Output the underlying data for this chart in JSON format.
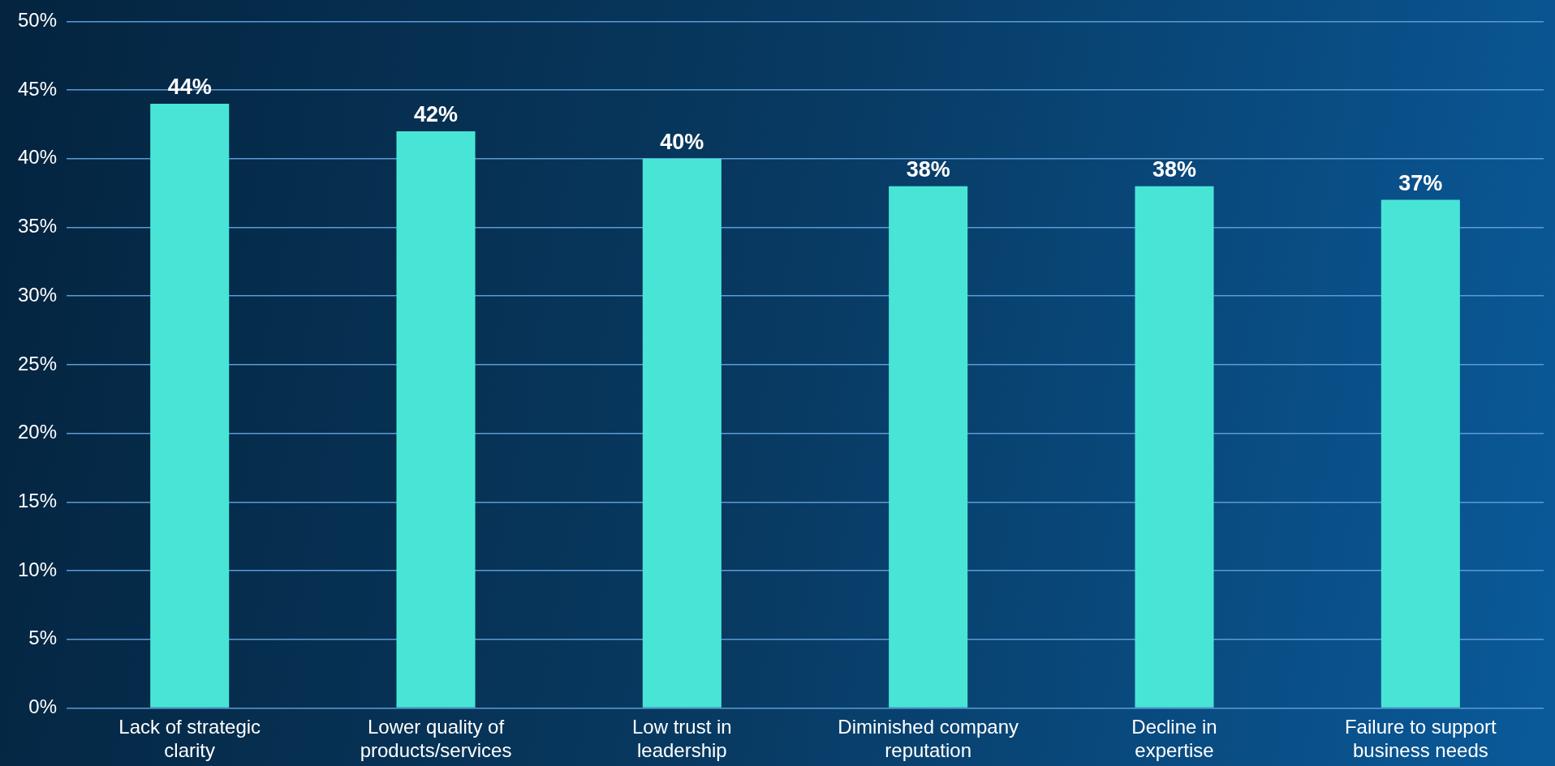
{
  "chart_data": {
    "type": "bar",
    "categories": [
      "Lack of strategic clarity",
      "Lower quality of products/services",
      "Low trust in leadership",
      "Diminished company reputation",
      "Decline in expertise",
      "Failure to support business needs"
    ],
    "values": [
      44,
      42,
      40,
      38,
      38,
      37
    ],
    "value_labels": [
      "44%",
      "42%",
      "40%",
      "38%",
      "38%",
      "37%"
    ],
    "color": "#48e5d6",
    "ylim": [
      0,
      50
    ],
    "yticks": [
      {
        "value": 0,
        "label": "0%"
      },
      {
        "value": 5,
        "label": "5%"
      },
      {
        "value": 10,
        "label": "10%"
      },
      {
        "value": 15,
        "label": "15%"
      },
      {
        "value": 20,
        "label": "20%"
      },
      {
        "value": 25,
        "label": "25%"
      },
      {
        "value": 30,
        "label": "30%"
      },
      {
        "value": 35,
        "label": "35%"
      },
      {
        "value": 40,
        "label": "40%"
      },
      {
        "value": 45,
        "label": "45%"
      },
      {
        "value": 50,
        "label": "50%"
      }
    ],
    "grid": "y",
    "legend": false
  }
}
